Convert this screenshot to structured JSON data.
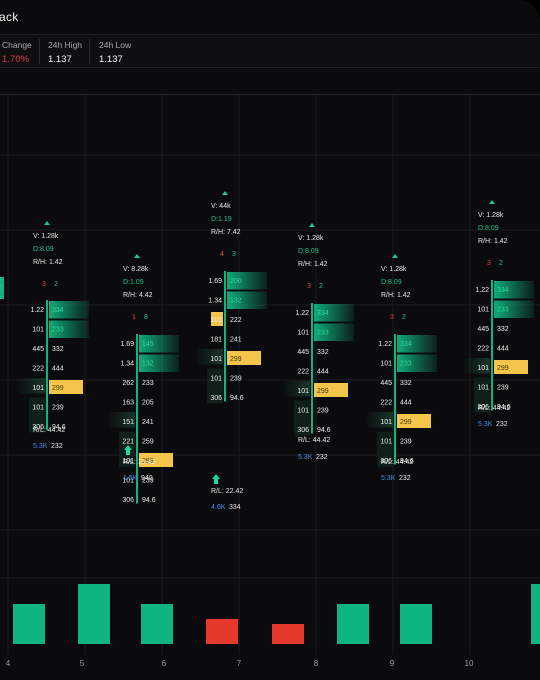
{
  "header": {
    "title": "ack"
  },
  "stats": [
    {
      "label": "Change",
      "value": "1.70%",
      "negative": true
    },
    {
      "label": "24h High",
      "value": "1.137",
      "negative": false
    },
    {
      "label": "24h Low",
      "value": "1.137",
      "negative": false
    }
  ],
  "colors": {
    "up": "#10b47f",
    "down": "#e4392b",
    "poc": "#f3c54a",
    "blue": "#3f8ee8",
    "green_text": "#1fc58a",
    "red_text": "#e8453c"
  },
  "x_axis": [
    "4",
    "5",
    "6",
    "7",
    "8",
    "9",
    "10"
  ],
  "edge_left": {
    "delta": "5"
  },
  "candles": [
    {
      "summary": {
        "v": "V: 1.28k",
        "d": "D:8.09",
        "rh": "R/H: 1.42"
      },
      "imbalance": {
        "sell": "3",
        "buy": "2"
      },
      "rows": [
        {
          "bid": "1.22",
          "ask": "334",
          "askfill": "green"
        },
        {
          "bid": "101",
          "ask": "233",
          "askfill": "green"
        },
        {
          "bid": "445",
          "ask": "332"
        },
        {
          "bid": "222",
          "ask": "444"
        },
        {
          "bid": "101",
          "ask": "299",
          "askfill": "poc"
        },
        {
          "bid": "101",
          "ask": "239"
        },
        {
          "bid": "306",
          "ask": "94.6"
        }
      ],
      "rl": "R/L: 44.42",
      "bottom": {
        "vol": "5.3K",
        "delta": "232"
      },
      "arrow": false,
      "volume_bar": {
        "dir": "up",
        "value": 40
      }
    },
    {
      "summary": {
        "v": "V: 1.28k",
        "d": "D:8.09",
        "rh": "R/H: 1.42"
      },
      "imbalance": {
        "sell": "3",
        "buy": "2"
      },
      "rows": [
        {
          "bid": "1.22",
          "ask": "334",
          "askfill": "green"
        },
        {
          "bid": "101",
          "ask": "233",
          "askfill": "green"
        },
        {
          "bid": "445",
          "ask": "332"
        },
        {
          "bid": "222",
          "ask": "444"
        },
        {
          "bid": "101",
          "ask": "299",
          "askfill": "poc"
        },
        {
          "bid": "101",
          "ask": "239"
        },
        {
          "bid": "306",
          "ask": "94.6"
        }
      ],
      "rl": "R/L: 44.42",
      "bottom": {
        "vol": "5.3K",
        "delta": "232"
      },
      "arrow": false,
      "volume_bar": {
        "dir": "up",
        "value": 60
      }
    },
    {
      "summary": {
        "v": "V: 8.28k",
        "d": "D:1.09",
        "rh": "R/H: 4.42"
      },
      "imbalance": {
        "sell": "1",
        "buy": "8"
      },
      "rows": [
        {
          "bid": "1.69",
          "ask": "145",
          "askfill": "green"
        },
        {
          "bid": "1.34",
          "ask": "132",
          "askfill": "green"
        },
        {
          "bid": "262",
          "ask": "233"
        },
        {
          "bid": "163",
          "ask": "205"
        },
        {
          "bid": "151",
          "ask": "241"
        },
        {
          "bid": "221",
          "ask": "259"
        },
        {
          "bid": "101",
          "ask": "299",
          "askfill": "poc"
        },
        {
          "bid": "101",
          "ask": "239"
        },
        {
          "bid": "306",
          "ask": "94.6"
        }
      ],
      "rl": "R/L: 19.42",
      "bottom": {
        "vol": "1.5K",
        "delta": "940"
      },
      "arrow": true,
      "volume_bar": {
        "dir": "up",
        "value": 40
      }
    },
    {
      "summary": {
        "v": "V: 44k",
        "d": "D:1.19",
        "rh": "R/H: 7.42"
      },
      "imbalance": {
        "sell": "4",
        "buy": "3"
      },
      "rows": [
        {
          "bid": "1.69",
          "ask": "200",
          "askfill": "green"
        },
        {
          "bid": "1.34",
          "ask": "132",
          "askfill": "green"
        },
        {
          "bid": "101",
          "ask": "222",
          "bidfill": "poc"
        },
        {
          "bid": "181",
          "ask": "241"
        },
        {
          "bid": "101",
          "ask": "299",
          "askfill": "poc"
        },
        {
          "bid": "101",
          "ask": "239"
        },
        {
          "bid": "306",
          "ask": "94.6"
        }
      ],
      "rl": "R/L: 22.42",
      "bottom": {
        "vol": "4.6K",
        "delta": "334"
      },
      "arrow": true,
      "volume_bar": {
        "dir": "down",
        "value": 25
      }
    },
    {
      "summary": {
        "v": "V: 1.28k",
        "d": "D:8.09",
        "rh": "R/H: 1.42"
      },
      "imbalance": {
        "sell": "3",
        "buy": "2"
      },
      "rows": [
        {
          "bid": "1.22",
          "ask": "334",
          "askfill": "green"
        },
        {
          "bid": "101",
          "ask": "233",
          "askfill": "green"
        },
        {
          "bid": "445",
          "ask": "332"
        },
        {
          "bid": "222",
          "ask": "444"
        },
        {
          "bid": "101",
          "ask": "299",
          "askfill": "poc"
        },
        {
          "bid": "101",
          "ask": "239"
        },
        {
          "bid": "306",
          "ask": "94.6"
        }
      ],
      "rl": "R/L: 44.42",
      "bottom": {
        "vol": "5.3K",
        "delta": "232"
      },
      "arrow": false,
      "volume_bar": {
        "dir": "down",
        "value": 20
      }
    },
    {
      "summary": {
        "v": "V: 1.28k",
        "d": "D:8.09",
        "rh": "R/H: 1.42"
      },
      "imbalance": {
        "sell": "3",
        "buy": "2"
      },
      "rows": [
        {
          "bid": "1.22",
          "ask": "334",
          "askfill": "green"
        },
        {
          "bid": "101",
          "ask": "233",
          "askfill": "green"
        },
        {
          "bid": "445",
          "ask": "332"
        },
        {
          "bid": "222",
          "ask": "444"
        },
        {
          "bid": "101",
          "ask": "299",
          "askfill": "poc"
        },
        {
          "bid": "101",
          "ask": "239"
        },
        {
          "bid": "306",
          "ask": "94.6"
        }
      ],
      "rl": "R/L: 44.42",
      "bottom": {
        "vol": "5.3K",
        "delta": "232"
      },
      "arrow": false,
      "volume_bar": {
        "dir": "up",
        "value": 40
      }
    },
    {
      "summary": {
        "v": "V: 1.28k",
        "d": "D:8.09",
        "rh": "R/H: 1.42"
      },
      "imbalance": {
        "sell": "3",
        "buy": "2"
      },
      "rows": [
        {
          "bid": "1.22",
          "ask": "334",
          "askfill": "green"
        },
        {
          "bid": "101",
          "ask": "233",
          "askfill": "green"
        },
        {
          "bid": "445",
          "ask": "332"
        },
        {
          "bid": "222",
          "ask": "444"
        },
        {
          "bid": "101",
          "ask": "299",
          "askfill": "poc"
        },
        {
          "bid": "101",
          "ask": "239"
        },
        {
          "bid": "306",
          "ask": "94.6"
        }
      ],
      "rl": "R/L: 44.42",
      "bottom": {
        "vol": "5.3K",
        "delta": "232"
      },
      "arrow": false,
      "volume_bar": {
        "dir": "up",
        "value": 40
      }
    }
  ],
  "edge_right_bar": {
    "dir": "up",
    "value": 60
  }
}
